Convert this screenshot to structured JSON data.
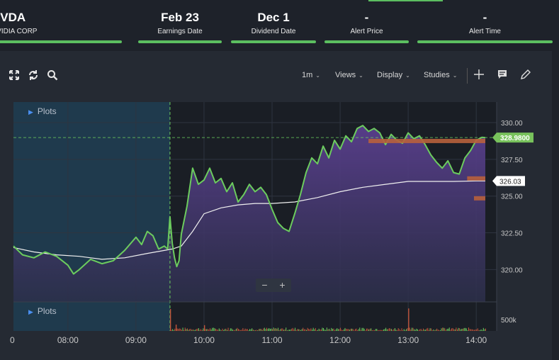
{
  "header": {
    "stats": [
      {
        "value": "NVDA",
        "label": "NVIDIA CORP",
        "left": 0
      },
      {
        "value": "Feb 23",
        "label": "Earnings Date"
      },
      {
        "value": "Dec 1",
        "label": "Dividend Date"
      },
      {
        "value": "-",
        "label": "Alert Price"
      },
      {
        "value": "-",
        "label": "Alert Time"
      }
    ]
  },
  "toolbar": {
    "interval": "1m",
    "views": "Views",
    "display": "Display",
    "studies": "Studies",
    "icons": [
      "expand-icon",
      "refresh-icon",
      "search-icon",
      "crosshair-icon",
      "comment-icon",
      "draw-icon"
    ]
  },
  "plots_label": "Plots",
  "zoom": {
    "minus": "−",
    "plus": "+"
  },
  "chart_data": {
    "type": "area",
    "title": "",
    "xlabel": "",
    "ylabel": "",
    "x_ticks": [
      "08:00",
      "09:00",
      "10:00",
      "11:00",
      "12:00",
      "13:00",
      "14:00"
    ],
    "y_ticks": [
      "320.00",
      "322.50",
      "325.00",
      "327.50",
      "330.00"
    ],
    "ylim": [
      317.8,
      331.4
    ],
    "x_range": [
      "07:12",
      "14:18"
    ],
    "volume_tick": "500k",
    "last_price": "328.9800",
    "vwap_price": "326.03",
    "session_open": "09:30",
    "colors": {
      "price": "#6ccc5e",
      "area_top": "#5a3f8e",
      "premarket": "#1f3a4d",
      "vwap": "#f0f0f0",
      "last_price_tag": "#78c25c",
      "level": "#b8603c"
    },
    "series": [
      {
        "name": "",
        "times": [
          "07:12",
          "07:20",
          "07:30",
          "07:40",
          "07:50",
          "08:00",
          "08:05",
          "08:10",
          "08:20",
          "08:30",
          "08:40",
          "08:50",
          "09:00",
          "09:05",
          "09:10",
          "09:15",
          "09:20",
          "09:25",
          "09:28",
          "09:30",
          "09:32",
          "09:34",
          "09:36",
          "09:38",
          "09:40",
          "09:45",
          "09:50",
          "09:55",
          "10:00",
          "10:05",
          "10:10",
          "10:15",
          "10:20",
          "10:25",
          "10:30",
          "10:35",
          "10:40",
          "10:45",
          "10:50",
          "10:55",
          "11:00",
          "11:05",
          "11:10",
          "11:15",
          "11:20",
          "11:25",
          "11:30",
          "11:35",
          "11:40",
          "11:45",
          "11:50",
          "11:55",
          "12:00",
          "12:05",
          "12:10",
          "12:15",
          "12:20",
          "12:25",
          "12:30",
          "12:35",
          "12:40",
          "12:45",
          "12:50",
          "12:55",
          "13:00",
          "13:05",
          "13:10",
          "13:15",
          "13:20",
          "13:25",
          "13:30",
          "13:35",
          "13:40",
          "13:45",
          "13:50",
          "13:55",
          "14:00",
          "14:05",
          "14:08"
        ],
        "values": [
          321.6,
          321.0,
          320.8,
          321.2,
          320.9,
          320.3,
          319.7,
          320.0,
          320.7,
          320.4,
          320.6,
          321.3,
          322.2,
          321.7,
          322.6,
          322.3,
          321.4,
          321.6,
          321.4,
          323.6,
          321.8,
          320.8,
          320.2,
          320.6,
          322.4,
          324.3,
          326.9,
          325.8,
          326.1,
          326.9,
          325.9,
          326.2,
          325.3,
          325.9,
          324.6,
          325.1,
          325.8,
          325.3,
          325.6,
          325.1,
          324.1,
          323.2,
          322.8,
          322.6,
          323.8,
          325.1,
          326.6,
          327.6,
          327.2,
          328.4,
          327.6,
          328.8,
          328.2,
          329.1,
          328.7,
          329.6,
          329.8,
          329.4,
          329.6,
          329.3,
          328.5,
          329.2,
          328.8,
          328.6,
          329.3,
          328.9,
          329.1,
          328.5,
          327.8,
          327.3,
          326.9,
          327.4,
          326.6,
          326.5,
          327.6,
          328.1,
          328.8,
          329.0,
          328.98
        ]
      },
      {
        "name": "",
        "times": [
          "07:12",
          "07:30",
          "07:50",
          "08:10",
          "08:30",
          "08:50",
          "09:10",
          "09:25",
          "09:32",
          "09:40",
          "09:50",
          "10:00",
          "10:15",
          "10:30",
          "10:45",
          "11:00",
          "11:20",
          "11:40",
          "12:00",
          "12:20",
          "12:40",
          "13:00",
          "13:20",
          "13:40",
          "14:00",
          "14:08"
        ],
        "values": [
          321.5,
          321.2,
          321.0,
          320.9,
          320.7,
          320.8,
          321.1,
          321.3,
          321.4,
          321.6,
          322.6,
          323.8,
          324.2,
          324.4,
          324.5,
          324.5,
          324.6,
          324.9,
          325.3,
          325.6,
          325.8,
          326.0,
          326.0,
          326.0,
          326.03,
          326.03
        ]
      }
    ],
    "levels": [
      {
        "price": 328.75,
        "from": "12:25",
        "to": "14:08"
      },
      {
        "price": 326.2,
        "from": "13:52",
        "to": "14:08"
      },
      {
        "price": 324.85,
        "from": "13:58",
        "to": "14:08"
      }
    ],
    "volume": [
      {
        "time": "09:30",
        "value": 380
      },
      {
        "time": "13:00",
        "value": 390
      },
      {
        "time": "09:35",
        "value": 110
      },
      {
        "time": "10:00",
        "value": 100
      }
    ]
  }
}
